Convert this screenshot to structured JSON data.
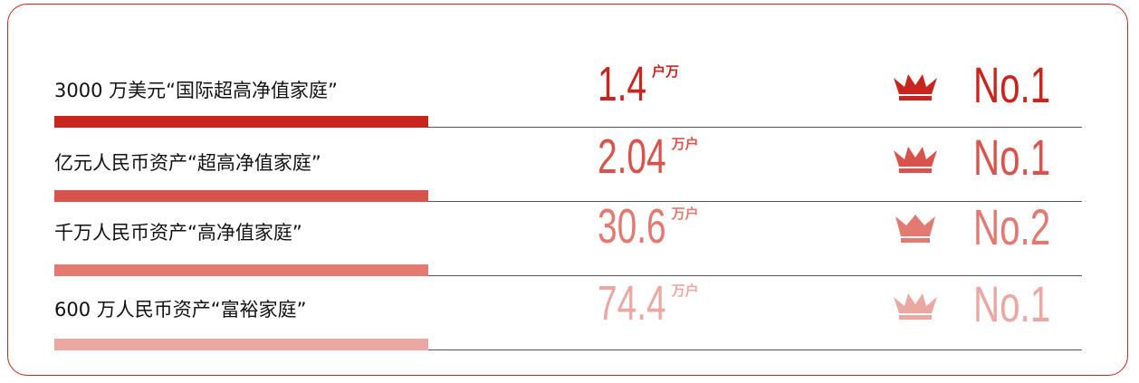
{
  "rows": [
    {
      "label": "3000 万美元“国际超高净值家庭”",
      "value": 1.4,
      "unit": "户万",
      "rank": "No.1"
    },
    {
      "label": "亿元人民币资产“超高净值家庭”",
      "value": 2.04,
      "unit": "万户",
      "rank": "No.1"
    },
    {
      "label": "千万人民币资产“高净值家庭”",
      "value": 30.6,
      "unit": "万户",
      "rank": "No.2"
    },
    {
      "label": "600 万人民币资产“富裕家庭”",
      "value": 74.4,
      "unit": "万户",
      "rank": "No.1"
    }
  ]
}
